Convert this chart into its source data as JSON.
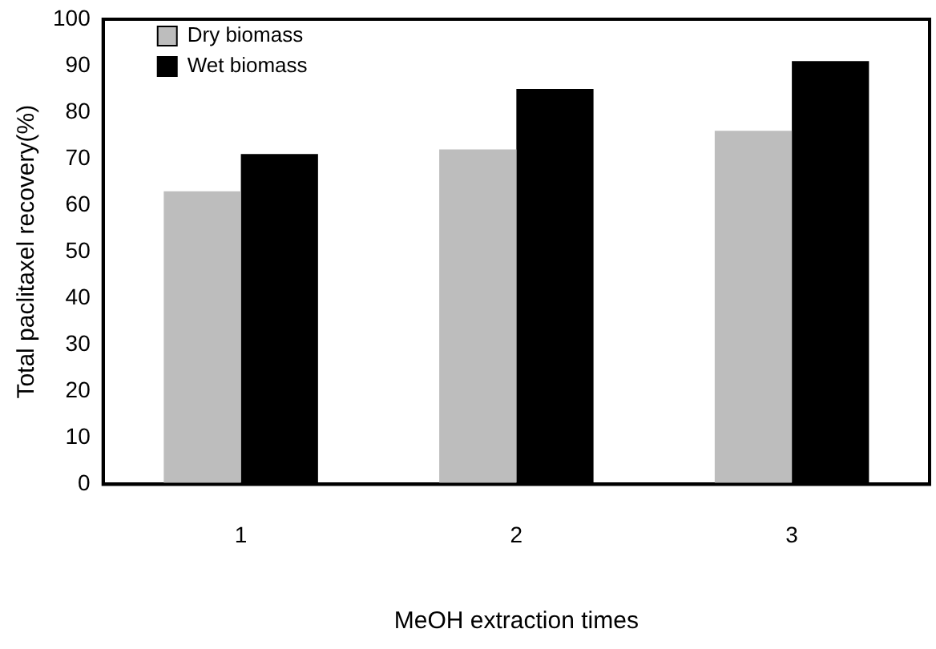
{
  "chart_data": {
    "type": "bar",
    "xlabel": "MeOH extraction times",
    "ylabel": "Total paclitaxel recovery(%)",
    "categories": [
      "1",
      "2",
      "3"
    ],
    "series": [
      {
        "name": "Dry biomass",
        "color": "#bdbdbd",
        "values": [
          63,
          72,
          76
        ]
      },
      {
        "name": "Wet biomass",
        "color": "#000000",
        "values": [
          71,
          85,
          91
        ]
      }
    ],
    "ylim": [
      0,
      100
    ],
    "yticks": [
      0,
      10,
      20,
      30,
      40,
      50,
      60,
      70,
      80,
      90,
      100
    ],
    "grid": false,
    "legend": "top left"
  }
}
